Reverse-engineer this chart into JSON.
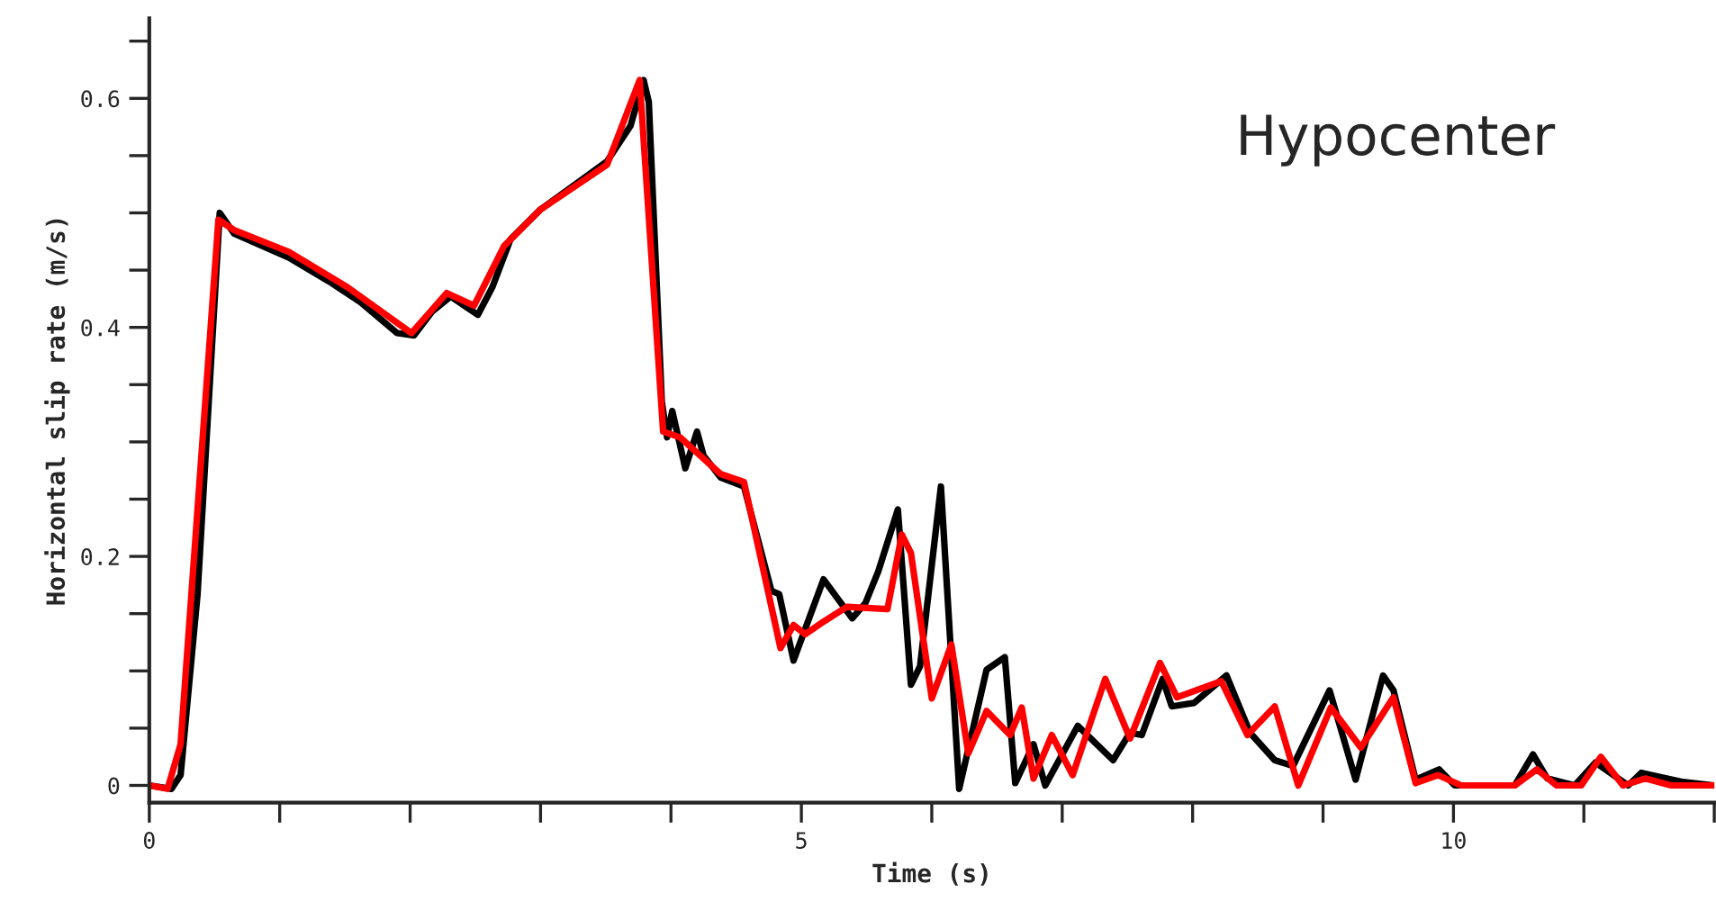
{
  "chart_data": {
    "type": "line",
    "xlabel": "Time (s)",
    "ylabel": "Horizontal slip rate (m/s)",
    "annotations": [
      "Hypocenter"
    ],
    "xlim": [
      0,
      12
    ],
    "ylim": [
      -0.015,
      0.67
    ],
    "xticks": [
      0,
      {
        "value": 1,
        "label": null
      },
      {
        "value": 2,
        "label": null
      },
      {
        "value": 3,
        "label": null
      },
      {
        "value": 4,
        "label": null
      },
      5,
      {
        "value": 6,
        "label": null
      },
      {
        "value": 7,
        "label": null
      },
      {
        "value": 8,
        "label": null
      },
      {
        "value": 9,
        "label": null
      },
      10,
      {
        "value": 11,
        "label": null
      },
      {
        "value": 12,
        "label": null
      }
    ],
    "yticks": [
      0,
      {
        "value": 0.05,
        "label": null
      },
      {
        "value": 0.1,
        "label": null
      },
      {
        "value": 0.15,
        "label": null
      },
      0.2,
      {
        "value": 0.25,
        "label": null
      },
      {
        "value": 0.3,
        "label": null
      },
      {
        "value": 0.35,
        "label": null
      },
      0.4,
      {
        "value": 0.45,
        "label": null
      },
      {
        "value": 0.5,
        "label": null
      },
      {
        "value": 0.55,
        "label": null
      },
      0.6,
      {
        "value": 0.65,
        "label": null
      }
    ],
    "grid": false,
    "legend": false,
    "marker": "none",
    "line_style": "solid",
    "series": [
      {
        "color": "#000000",
        "x": [
          0,
          0.17,
          0.24,
          0.37,
          0.54,
          0.65,
          1.07,
          1.38,
          1.62,
          1.9,
          2.03,
          2.17,
          2.31,
          2.52,
          2.63,
          2.77,
          3.0,
          3.28,
          3.51,
          3.69,
          3.79,
          3.83,
          3.93,
          3.97,
          4.01,
          4.11,
          4.2,
          4.25,
          4.38,
          4.56,
          4.77,
          4.83,
          4.94,
          5.17,
          5.39,
          5.49,
          5.59,
          5.74,
          5.84,
          5.91,
          6.07,
          6.21,
          6.42,
          6.56,
          6.64,
          6.78,
          6.87,
          7.12,
          7.39,
          7.52,
          7.61,
          7.77,
          7.84,
          8.01,
          8.26,
          8.44,
          8.63,
          8.77,
          9.05,
          9.25,
          9.46,
          9.54,
          9.71,
          9.89,
          10.01,
          10.47,
          10.61,
          10.72,
          10.93,
          11.09,
          11.34,
          11.44,
          11.76,
          12.0
        ],
        "values": [
          0,
          -0.003,
          0.009,
          0.167,
          0.5,
          0.482,
          0.461,
          0.44,
          0.422,
          0.395,
          0.393,
          0.414,
          0.427,
          0.411,
          0.435,
          0.477,
          0.503,
          0.526,
          0.545,
          0.576,
          0.616,
          0.597,
          0.335,
          0.304,
          0.327,
          0.277,
          0.309,
          0.288,
          0.269,
          0.261,
          0.17,
          0.167,
          0.109,
          0.18,
          0.146,
          0.159,
          0.187,
          0.241,
          0.088,
          0.104,
          0.261,
          -0.003,
          0.101,
          0.112,
          0.002,
          0.036,
          0,
          0.052,
          0.022,
          0.046,
          0.044,
          0.093,
          0.069,
          0.072,
          0.096,
          0.046,
          0.022,
          0.017,
          0.083,
          0.005,
          0.096,
          0.083,
          0.005,
          0.014,
          0,
          0,
          0.027,
          0.006,
          0,
          0.02,
          0,
          0.011,
          0.003,
          0
        ]
      },
      {
        "color": "#ff0000",
        "x": [
          0,
          0.14,
          0.24,
          0.53,
          0.65,
          1.07,
          1.52,
          2.01,
          2.28,
          2.49,
          2.72,
          3.0,
          3.51,
          3.76,
          3.94,
          4.07,
          4.38,
          4.56,
          4.84,
          4.94,
          5.03,
          5.17,
          5.35,
          5.66,
          5.77,
          5.84,
          6.0,
          6.15,
          6.28,
          6.42,
          6.6,
          6.69,
          6.78,
          6.92,
          7.08,
          7.33,
          7.52,
          7.75,
          7.88,
          8.22,
          8.42,
          8.63,
          8.81,
          9.06,
          9.29,
          9.54,
          9.71,
          9.88,
          10.06,
          10.47,
          10.64,
          10.79,
          10.98,
          11.13,
          11.3,
          11.47,
          11.67,
          12.0
        ],
        "values": [
          0,
          -0.003,
          0.036,
          0.494,
          0.485,
          0.466,
          0.435,
          0.395,
          0.43,
          0.419,
          0.471,
          0.503,
          0.542,
          0.616,
          0.309,
          0.304,
          0.272,
          0.265,
          0.12,
          0.14,
          0.132,
          0.143,
          0.156,
          0.154,
          0.219,
          0.203,
          0.076,
          0.123,
          0.028,
          0.065,
          0.044,
          0.068,
          0.006,
          0.044,
          0.009,
          0.093,
          0.041,
          0.107,
          0.077,
          0.091,
          0.044,
          0.069,
          0,
          0.068,
          0.033,
          0.077,
          0.002,
          0.009,
          0,
          0,
          0.014,
          0,
          0,
          0.025,
          0,
          0.006,
          0,
          0
        ]
      }
    ]
  }
}
